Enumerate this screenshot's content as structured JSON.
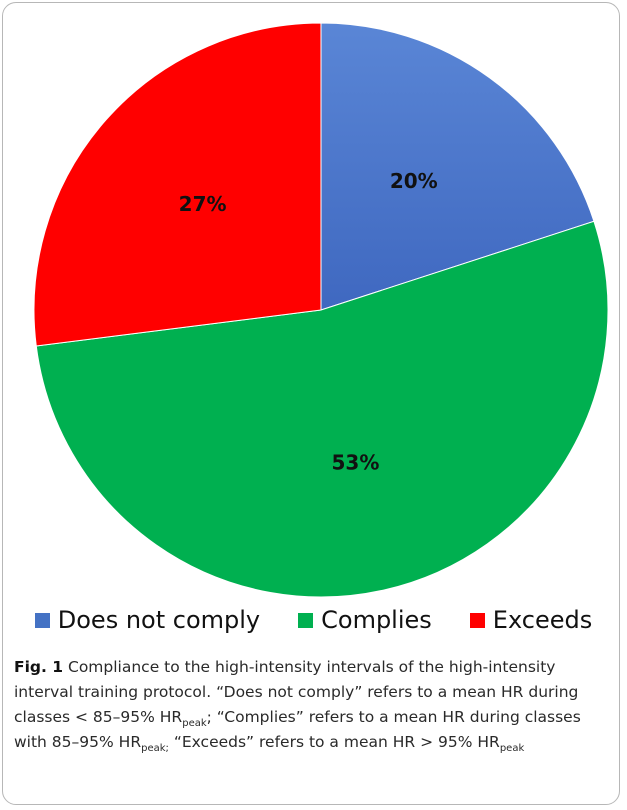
{
  "chart_data": {
    "type": "pie",
    "categories": [
      "Does not comply",
      "Complies",
      "Exceeds"
    ],
    "values": [
      20,
      53,
      27
    ],
    "labels": [
      "20%",
      "53%",
      "27%"
    ],
    "colors": [
      "#4472c4",
      "#00b050",
      "#ff0000"
    ],
    "legend_placement": "bottom",
    "start_angle": "top",
    "direction": "clockwise"
  },
  "legend": [
    {
      "label": "Does not comply",
      "color": "#4472c4"
    },
    {
      "label": "Complies",
      "color": "#00b050"
    },
    {
      "label": "Exceeds",
      "color": "#ff0000"
    }
  ],
  "caption": {
    "fig_label": "Fig. 1",
    "t1": " Compliance to the high-intensity intervals of the high-intensity interval training protocol. “Does not comply” refers to a mean HR during classes < 85–95% HR",
    "s1": "peak",
    "t2": "; “Complies” refers to a mean HR during classes with 85–95% HR",
    "s2": "peak;",
    "t3": " “Exceeds” refers to a mean HR  > 95% HR",
    "s3": "peak"
  }
}
